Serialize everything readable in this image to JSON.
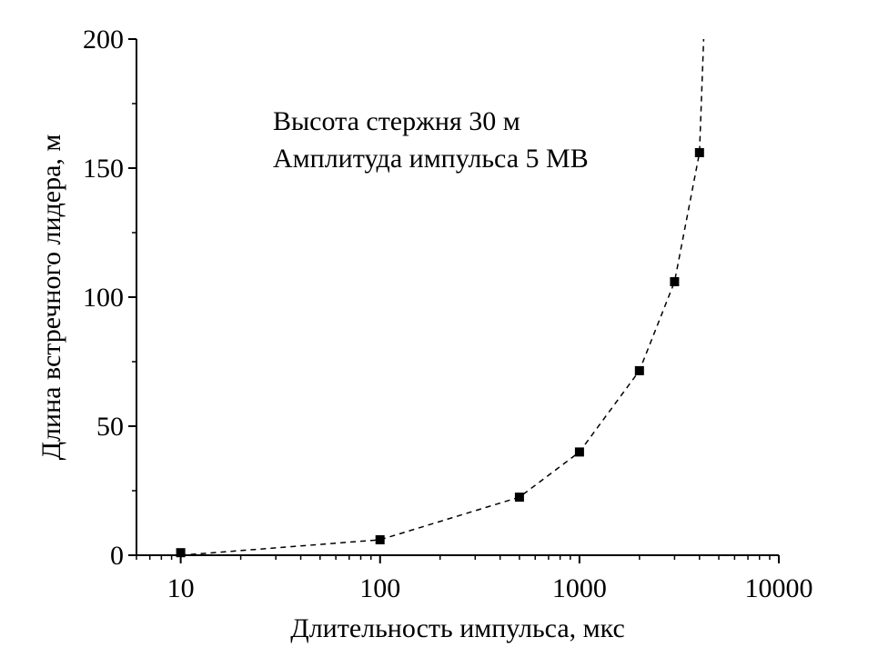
{
  "chart_data": {
    "type": "scatter",
    "xscale": "log",
    "xlim": [
      6,
      10000
    ],
    "ylim": [
      0,
      200
    ],
    "xticks": [
      10,
      100,
      1000,
      10000
    ],
    "xtick_labels": [
      "10",
      "100",
      "1000",
      "10000"
    ],
    "yticks": [
      0,
      50,
      100,
      150,
      200
    ],
    "ytick_labels": [
      "0",
      "50",
      "100",
      "150",
      "200"
    ],
    "xlabel": "Длительность импульса,  мкс",
    "ylabel": "Длина встречного лидера,  м",
    "annotations": [
      "Высота стержня 30 м",
      "Амплитуда импульса 5 МВ"
    ],
    "grid": false,
    "series": [
      {
        "marker": "square",
        "color": "#000000",
        "x": [
          10,
          100,
          500,
          1000,
          2000,
          3000,
          4000
        ],
        "y": [
          1,
          6,
          22.5,
          40,
          71.5,
          106,
          156
        ]
      }
    ],
    "trend_line": {
      "style": "dashed",
      "x": [
        10,
        100,
        500,
        1000,
        2000,
        3000,
        4000,
        4200
      ],
      "y": [
        0,
        6,
        22.5,
        40,
        71.5,
        106,
        156,
        200
      ]
    }
  }
}
